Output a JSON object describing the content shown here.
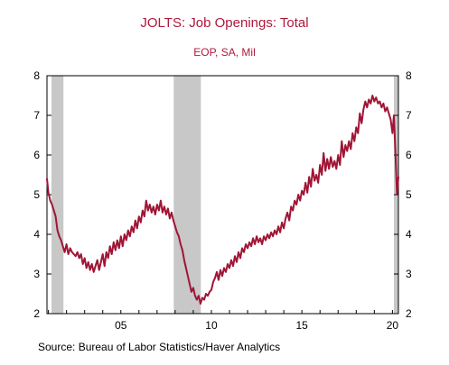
{
  "chart_data": {
    "type": "line",
    "title": "JOLTS: Job Openings: Total",
    "subtitle": "EOP, SA, Mil",
    "source": "Source:  Bureau of Labor Statistics/Haver Analytics",
    "xlabel": "",
    "ylabel": "",
    "xlim": [
      2000.92,
      2020.33
    ],
    "ylim": [
      2,
      8
    ],
    "y_ticks": [
      2,
      3,
      4,
      5,
      6,
      7,
      8
    ],
    "x_ticks": [
      {
        "value": 2005,
        "label": "05"
      },
      {
        "value": 2010,
        "label": "10"
      },
      {
        "value": 2015,
        "label": "15"
      },
      {
        "value": 2020,
        "label": "20"
      }
    ],
    "grid": false,
    "legend": "none",
    "recessions": [
      [
        2001.17,
        2001.83
      ],
      [
        2007.92,
        2009.42
      ],
      [
        2020.08,
        2020.33
      ]
    ],
    "line_color": "#a01535",
    "recession_color": "#c8c8c8",
    "series": [
      {
        "values": [
          [
            2000.92,
            5.4
          ],
          [
            2001.0,
            5.05
          ],
          [
            2001.1,
            4.85
          ],
          [
            2001.2,
            4.75
          ],
          [
            2001.3,
            4.6
          ],
          [
            2001.4,
            4.45
          ],
          [
            2001.5,
            4.1
          ],
          [
            2001.6,
            3.95
          ],
          [
            2001.7,
            3.85
          ],
          [
            2001.8,
            3.7
          ],
          [
            2001.9,
            3.55
          ],
          [
            2002.0,
            3.75
          ],
          [
            2002.1,
            3.5
          ],
          [
            2002.2,
            3.65
          ],
          [
            2002.3,
            3.55
          ],
          [
            2002.4,
            3.5
          ],
          [
            2002.5,
            3.45
          ],
          [
            2002.6,
            3.55
          ],
          [
            2002.7,
            3.4
          ],
          [
            2002.8,
            3.5
          ],
          [
            2002.9,
            3.25
          ],
          [
            2003.0,
            3.4
          ],
          [
            2003.1,
            3.15
          ],
          [
            2003.2,
            3.3
          ],
          [
            2003.3,
            3.1
          ],
          [
            2003.4,
            3.25
          ],
          [
            2003.5,
            3.05
          ],
          [
            2003.6,
            3.2
          ],
          [
            2003.7,
            3.35
          ],
          [
            2003.8,
            3.1
          ],
          [
            2003.9,
            3.3
          ],
          [
            2004.0,
            3.5
          ],
          [
            2004.1,
            3.2
          ],
          [
            2004.2,
            3.55
          ],
          [
            2004.3,
            3.4
          ],
          [
            2004.4,
            3.7
          ],
          [
            2004.5,
            3.5
          ],
          [
            2004.6,
            3.8
          ],
          [
            2004.7,
            3.6
          ],
          [
            2004.8,
            3.85
          ],
          [
            2004.9,
            3.65
          ],
          [
            2005.0,
            3.95
          ],
          [
            2005.1,
            3.7
          ],
          [
            2005.2,
            4.0
          ],
          [
            2005.3,
            3.85
          ],
          [
            2005.4,
            4.1
          ],
          [
            2005.5,
            3.95
          ],
          [
            2005.6,
            4.2
          ],
          [
            2005.7,
            4.05
          ],
          [
            2005.8,
            4.35
          ],
          [
            2005.9,
            4.15
          ],
          [
            2006.0,
            4.45
          ],
          [
            2006.1,
            4.3
          ],
          [
            2006.2,
            4.6
          ],
          [
            2006.3,
            4.45
          ],
          [
            2006.4,
            4.85
          ],
          [
            2006.5,
            4.6
          ],
          [
            2006.6,
            4.75
          ],
          [
            2006.7,
            4.55
          ],
          [
            2006.8,
            4.7
          ],
          [
            2006.9,
            4.5
          ],
          [
            2007.0,
            4.75
          ],
          [
            2007.1,
            4.6
          ],
          [
            2007.2,
            4.85
          ],
          [
            2007.3,
            4.55
          ],
          [
            2007.4,
            4.7
          ],
          [
            2007.5,
            4.5
          ],
          [
            2007.6,
            4.65
          ],
          [
            2007.7,
            4.4
          ],
          [
            2007.8,
            4.55
          ],
          [
            2007.9,
            4.35
          ],
          [
            2008.0,
            4.2
          ],
          [
            2008.1,
            4.05
          ],
          [
            2008.2,
            3.95
          ],
          [
            2008.3,
            3.75
          ],
          [
            2008.4,
            3.6
          ],
          [
            2008.5,
            3.35
          ],
          [
            2008.6,
            3.15
          ],
          [
            2008.7,
            2.95
          ],
          [
            2008.8,
            2.75
          ],
          [
            2008.9,
            2.55
          ],
          [
            2009.0,
            2.65
          ],
          [
            2009.1,
            2.45
          ],
          [
            2009.2,
            2.35
          ],
          [
            2009.3,
            2.45
          ],
          [
            2009.4,
            2.25
          ],
          [
            2009.5,
            2.4
          ],
          [
            2009.6,
            2.35
          ],
          [
            2009.7,
            2.5
          ],
          [
            2009.8,
            2.45
          ],
          [
            2009.9,
            2.55
          ],
          [
            2010.0,
            2.6
          ],
          [
            2010.1,
            2.8
          ],
          [
            2010.2,
            2.9
          ],
          [
            2010.3,
            3.05
          ],
          [
            2010.4,
            2.85
          ],
          [
            2010.5,
            3.1
          ],
          [
            2010.6,
            2.95
          ],
          [
            2010.7,
            3.15
          ],
          [
            2010.8,
            3.05
          ],
          [
            2010.9,
            3.25
          ],
          [
            2011.0,
            3.15
          ],
          [
            2011.1,
            3.35
          ],
          [
            2011.2,
            3.2
          ],
          [
            2011.3,
            3.45
          ],
          [
            2011.4,
            3.3
          ],
          [
            2011.5,
            3.55
          ],
          [
            2011.6,
            3.4
          ],
          [
            2011.7,
            3.65
          ],
          [
            2011.8,
            3.55
          ],
          [
            2011.9,
            3.75
          ],
          [
            2012.0,
            3.65
          ],
          [
            2012.1,
            3.8
          ],
          [
            2012.2,
            3.7
          ],
          [
            2012.3,
            3.9
          ],
          [
            2012.4,
            3.75
          ],
          [
            2012.5,
            3.95
          ],
          [
            2012.6,
            3.8
          ],
          [
            2012.7,
            3.9
          ],
          [
            2012.8,
            3.75
          ],
          [
            2012.9,
            3.95
          ],
          [
            2013.0,
            3.85
          ],
          [
            2013.1,
            4.0
          ],
          [
            2013.2,
            3.9
          ],
          [
            2013.3,
            4.05
          ],
          [
            2013.4,
            3.95
          ],
          [
            2013.5,
            4.1
          ],
          [
            2013.6,
            4.0
          ],
          [
            2013.7,
            4.2
          ],
          [
            2013.8,
            4.05
          ],
          [
            2013.9,
            4.3
          ],
          [
            2014.0,
            4.15
          ],
          [
            2014.1,
            4.4
          ],
          [
            2014.2,
            4.55
          ],
          [
            2014.3,
            4.35
          ],
          [
            2014.4,
            4.7
          ],
          [
            2014.5,
            4.6
          ],
          [
            2014.6,
            4.85
          ],
          [
            2014.7,
            4.75
          ],
          [
            2014.8,
            5.0
          ],
          [
            2014.9,
            4.85
          ],
          [
            2015.0,
            5.1
          ],
          [
            2015.1,
            5.0
          ],
          [
            2015.2,
            5.3
          ],
          [
            2015.3,
            5.05
          ],
          [
            2015.4,
            5.45
          ],
          [
            2015.5,
            5.2
          ],
          [
            2015.6,
            5.65
          ],
          [
            2015.7,
            5.35
          ],
          [
            2015.8,
            5.5
          ],
          [
            2015.9,
            5.3
          ],
          [
            2016.0,
            5.75
          ],
          [
            2016.1,
            5.5
          ],
          [
            2016.2,
            6.05
          ],
          [
            2016.3,
            5.6
          ],
          [
            2016.4,
            5.9
          ],
          [
            2016.5,
            5.65
          ],
          [
            2016.6,
            5.95
          ],
          [
            2016.7,
            5.7
          ],
          [
            2016.8,
            5.85
          ],
          [
            2016.9,
            5.65
          ],
          [
            2017.0,
            6.0
          ],
          [
            2017.1,
            5.75
          ],
          [
            2017.2,
            6.35
          ],
          [
            2017.3,
            5.95
          ],
          [
            2017.4,
            6.25
          ],
          [
            2017.5,
            6.1
          ],
          [
            2017.6,
            6.35
          ],
          [
            2017.7,
            6.15
          ],
          [
            2017.8,
            6.55
          ],
          [
            2017.9,
            6.35
          ],
          [
            2018.0,
            6.7
          ],
          [
            2018.1,
            6.55
          ],
          [
            2018.2,
            7.05
          ],
          [
            2018.3,
            6.8
          ],
          [
            2018.4,
            7.15
          ],
          [
            2018.5,
            7.35
          ],
          [
            2018.6,
            7.2
          ],
          [
            2018.7,
            7.4
          ],
          [
            2018.8,
            7.3
          ],
          [
            2018.9,
            7.5
          ],
          [
            2019.0,
            7.35
          ],
          [
            2019.1,
            7.45
          ],
          [
            2019.2,
            7.3
          ],
          [
            2019.3,
            7.35
          ],
          [
            2019.4,
            7.2
          ],
          [
            2019.5,
            7.3
          ],
          [
            2019.6,
            7.1
          ],
          [
            2019.7,
            7.2
          ],
          [
            2019.8,
            7.05
          ],
          [
            2019.9,
            6.9
          ],
          [
            2020.0,
            6.55
          ],
          [
            2020.08,
            7.0
          ],
          [
            2020.17,
            6.0
          ],
          [
            2020.25,
            5.0
          ],
          [
            2020.33,
            5.45
          ]
        ]
      }
    ]
  }
}
